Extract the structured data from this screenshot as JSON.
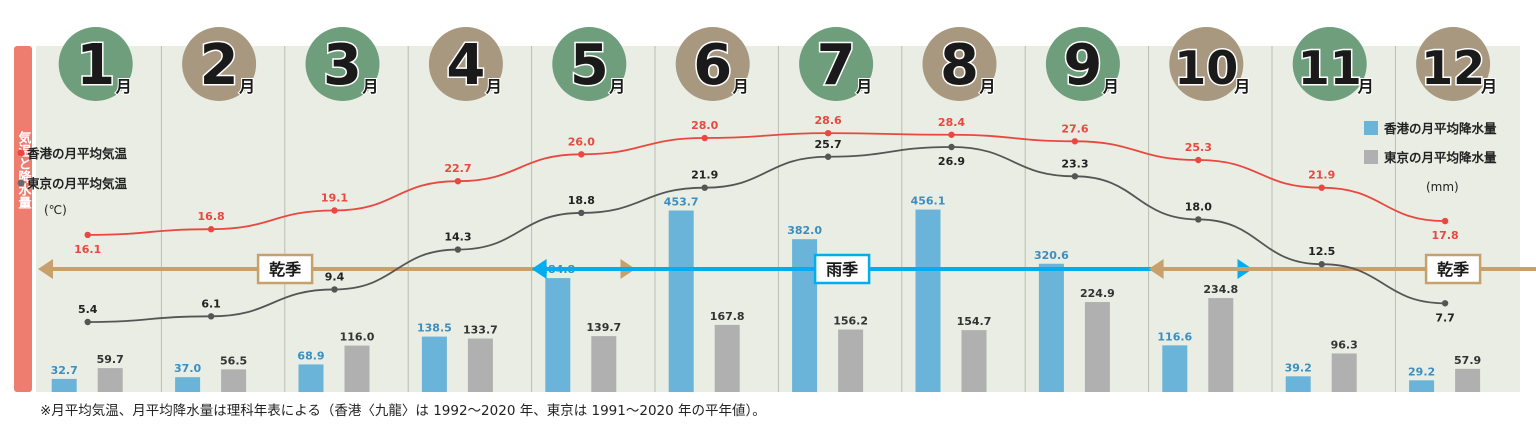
{
  "side_label": "気温と降水量",
  "footnote": "※月平均気温、月平均降水量は理科年表による（香港〈九龍〉は 1992～2020 年、東京は 1991～2020 年の平年値）。",
  "month_suffix": "月",
  "colors": {
    "hk_temp_line": "#e8483f",
    "tokyo_temp_line": "#555555",
    "hk_rain_bar": "#6ab4d9",
    "tokyo_rain_bar": "#b0b0b0",
    "dry_arrow": "#c8a06c",
    "rainy_arrow": "#00aeef",
    "green_circle": "#6e9e7c",
    "tan_circle": "#a89880",
    "panel_bg": "#e9ede3",
    "side_bar": "#ef7d6f"
  },
  "legend": {
    "hk_temp": "香港の月平均気温",
    "tokyo_temp": "東京の月平均気温",
    "temp_unit": "(℃)",
    "hk_rain": "香港の月平均降水量",
    "tokyo_rain": "東京の月平均降水量",
    "rain_unit": "(mm)"
  },
  "seasons": [
    {
      "label": "乾季",
      "type": "dry",
      "start_month": 1,
      "end_month": 4.85
    },
    {
      "label": "雨季",
      "type": "rainy",
      "start_month": 5,
      "end_month": 9.85
    },
    {
      "label": "乾季",
      "type": "dry",
      "start_month": 10,
      "end_month": 12.9
    }
  ],
  "chart_data": {
    "type": "bar",
    "categories": [
      "1",
      "2",
      "3",
      "4",
      "5",
      "6",
      "7",
      "8",
      "9",
      "10",
      "11",
      "12"
    ],
    "series": [
      {
        "name": "香港の月平均気温",
        "kind": "line",
        "unit": "℃",
        "values": [
          16.1,
          16.8,
          19.1,
          22.7,
          26.0,
          28.0,
          28.6,
          28.4,
          27.6,
          25.3,
          21.9,
          17.8
        ]
      },
      {
        "name": "東京の月平均気温",
        "kind": "line",
        "unit": "℃",
        "values": [
          5.4,
          6.1,
          9.4,
          14.3,
          18.8,
          21.9,
          25.7,
          26.9,
          23.3,
          18.0,
          12.5,
          7.7
        ]
      },
      {
        "name": "香港の月平均降水量",
        "kind": "bar",
        "unit": "mm",
        "values": [
          32.7,
          37.0,
          68.9,
          138.5,
          284.8,
          453.7,
          382.0,
          456.1,
          320.6,
          116.6,
          39.2,
          29.2
        ]
      },
      {
        "name": "東京の月平均降水量",
        "kind": "bar",
        "unit": "mm",
        "values": [
          59.7,
          56.5,
          116.0,
          133.7,
          139.7,
          167.8,
          156.2,
          154.7,
          224.9,
          234.8,
          96.3,
          57.9
        ]
      }
    ],
    "title": "",
    "xlabel": "",
    "ylabel": "",
    "grid": false,
    "legend_position": "left and right"
  }
}
